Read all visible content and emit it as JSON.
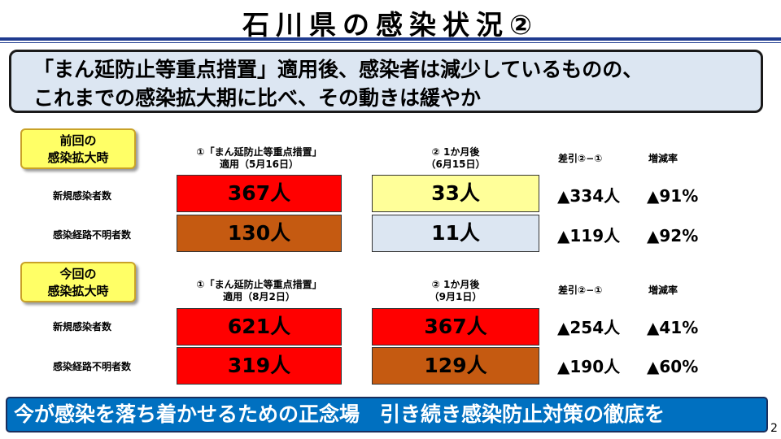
{
  "title": "石川県の感染状況②",
  "summary": {
    "line1": "「まん延防止等重点措置」適用後、感染者は減少しているものの、",
    "line2": "これまでの感染拡大期に比べ、その動きは緩やか"
  },
  "sections": [
    {
      "period_line1": "前回の",
      "period_line2": "感染拡大時",
      "col1_line1": "①「まん延防止等重点措置」",
      "col1_line2": "適用（5月16日）",
      "col2_line1": "② 1か月後",
      "col2_line2": "（6月15日）",
      "diff_header": "差引②−①",
      "rate_header": "増減率",
      "rows": [
        {
          "label": "新規感染者数",
          "v1": "367人",
          "v2": "33人",
          "diff": "▲334人",
          "rate": "▲91%"
        },
        {
          "label": "感染経路不明者数",
          "v1": "130人",
          "v2": "11人",
          "diff": "▲119人",
          "rate": "▲92%"
        }
      ]
    },
    {
      "period_line1": "今回の",
      "period_line2": "感染拡大時",
      "col1_line1": "①「まん延防止等重点措置」",
      "col1_line2": "適用（8月2日）",
      "col2_line1": "② 1か月後",
      "col2_line2": "（9月1日）",
      "diff_header": "差引②−①",
      "rate_header": "増減率",
      "rows": [
        {
          "label": "新規感染者数",
          "v1": "621人",
          "v2": "367人",
          "diff": "▲254人",
          "rate": "▲41%"
        },
        {
          "label": "感染経路不明者数",
          "v1": "319人",
          "v2": "129人",
          "diff": "▲190人",
          "rate": "▲60%"
        }
      ]
    }
  ],
  "banner": "今が感染を落ち着かせるための正念場　引き続き感染防止対策の徹底を",
  "page_number": "2",
  "colors": {
    "red": "#ff0000",
    "brown": "#c55a11",
    "yellow": "#ffff99",
    "light_blue": "#dce6f2",
    "banner_blue": "#0070c0",
    "rule_blue": "#1f3b8f"
  }
}
